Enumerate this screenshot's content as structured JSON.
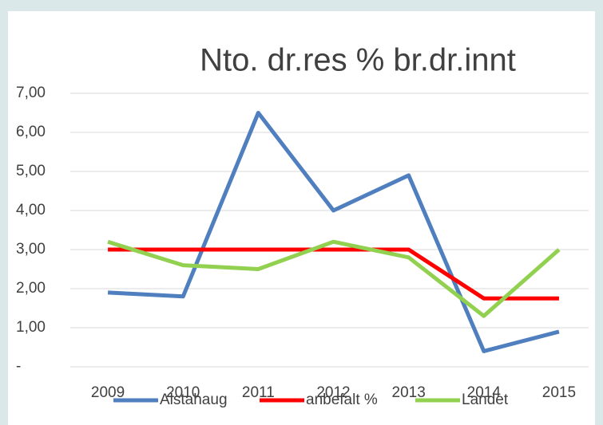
{
  "chart_data": {
    "type": "line",
    "title": "Nto. dr.res % br.dr.innt",
    "categories": [
      "2009",
      "2010",
      "2011",
      "2012",
      "2013",
      "2014",
      "2015"
    ],
    "series": [
      {
        "name": "Alstahaug",
        "color": "#4f7fbe",
        "values": [
          1.9,
          1.8,
          6.5,
          4.0,
          4.9,
          0.4,
          0.9
        ]
      },
      {
        "name": "anbefalt %",
        "color": "#ff0000",
        "values": [
          3,
          3,
          3,
          3,
          3,
          1.75,
          1.75
        ]
      },
      {
        "name": "Landet",
        "color": "#92d050",
        "values": [
          3.2,
          2.6,
          2.5,
          3.2,
          2.8,
          1.3,
          3.0
        ]
      }
    ],
    "ylim": [
      0,
      7
    ],
    "yticks": [
      {
        "value": 0,
        "label": "-"
      },
      {
        "value": 1,
        "label": "1,00"
      },
      {
        "value": 2,
        "label": "2,00"
      },
      {
        "value": 3,
        "label": "3,00"
      },
      {
        "value": 4,
        "label": "4,00"
      },
      {
        "value": 5,
        "label": "5,00"
      },
      {
        "value": 6,
        "label": "6,00"
      },
      {
        "value": 7,
        "label": "7,00"
      }
    ],
    "grid": true,
    "legend": "bottom"
  }
}
